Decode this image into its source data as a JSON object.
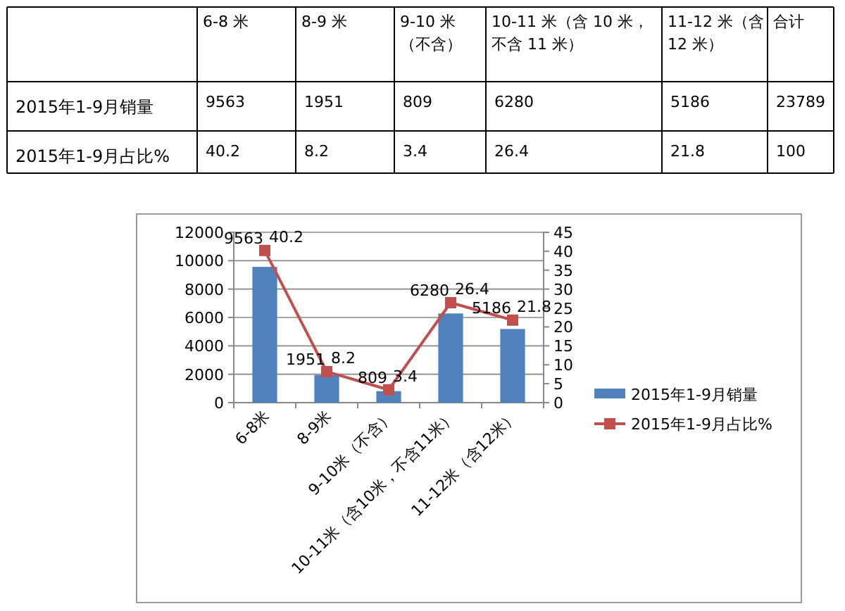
{
  "chart_data": {
    "type": "bar",
    "categories": [
      "6-8米",
      "8-9米",
      "9-10米（不含）",
      "10-11米（含10米，不含11米）",
      "11-12米（含12米）"
    ],
    "series": [
      {
        "name": "2015年1-9月销量",
        "color": "#4f81bd",
        "values": [
          9563,
          1951,
          809,
          6280,
          5186
        ]
      },
      {
        "name": "2015年1-9月占比%",
        "type": "line",
        "axis": "y2",
        "color": "#c0504d",
        "marker": "square",
        "values": [
          40.2,
          8.2,
          3.4,
          26.4,
          21.8
        ]
      }
    ],
    "ylim": [
      0,
      12000
    ],
    "yticks": [
      0,
      2000,
      4000,
      6000,
      8000,
      10000,
      12000
    ],
    "y2lim": [
      0,
      45
    ],
    "y2ticks": [
      0,
      5,
      10,
      15,
      20,
      25,
      30,
      35,
      40,
      45
    ],
    "grid": "y",
    "legend": "right",
    "data_labels": true,
    "annotations": [
      "6-8 米",
      "8-9 米",
      "9-10 米（不含）",
      "10-11 米（含 10 米，不含 11 米）",
      "11-12 米（含 12 米）",
      "合计",
      "9563",
      "1951",
      "809",
      "6280",
      "5186",
      "23789",
      "40.2",
      "8.2",
      "3.4",
      "26.4",
      "21.8",
      "100"
    ]
  }
}
